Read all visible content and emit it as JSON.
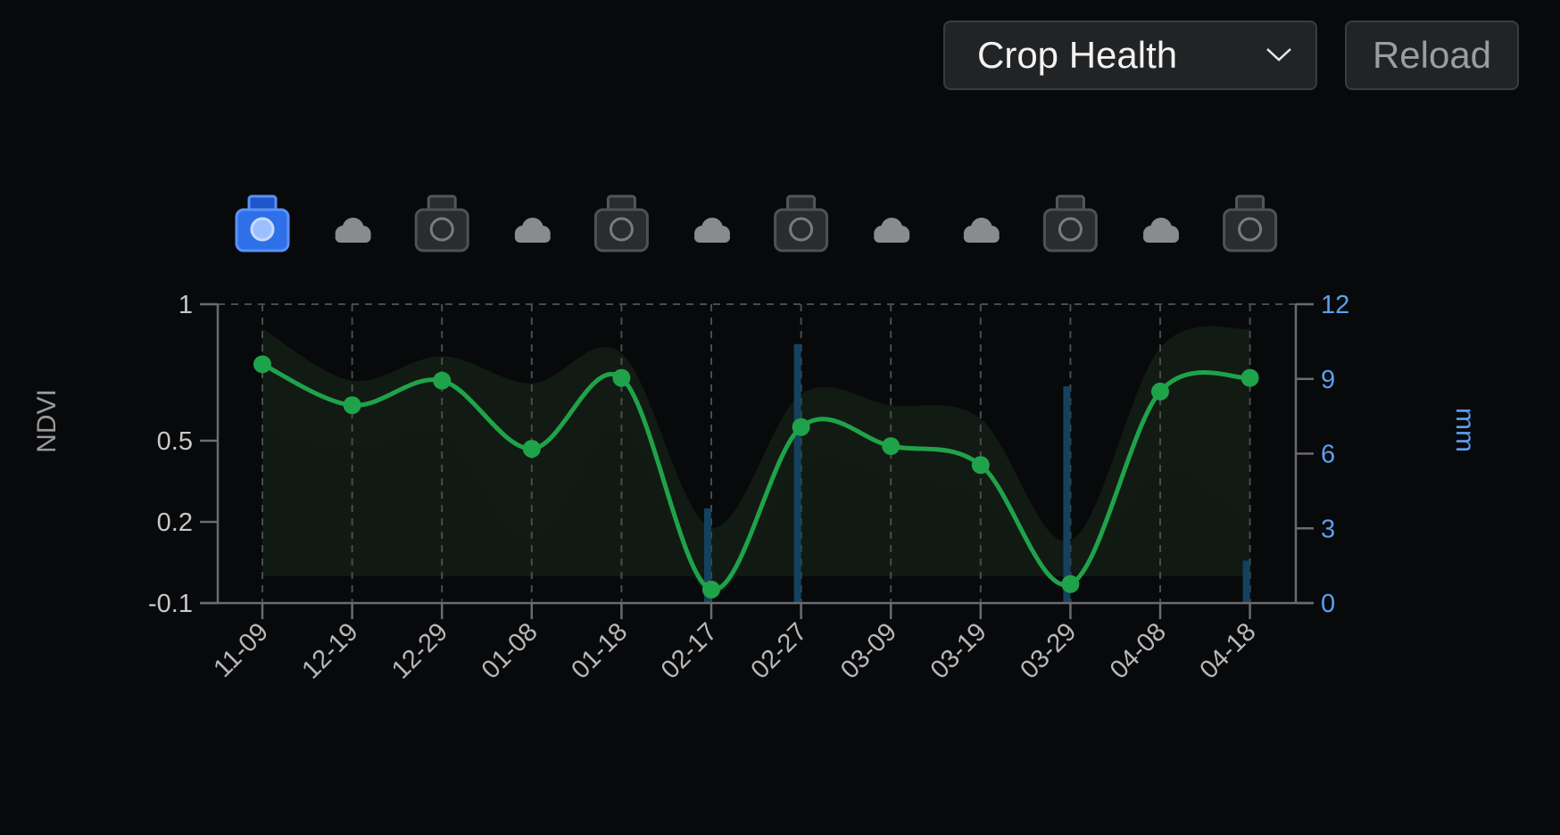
{
  "toolbar": {
    "layer_select": {
      "value": "Crop Health",
      "icon": "chevron-down-icon"
    },
    "reload_label": "Reload"
  },
  "colors": {
    "ndvi_line": "#1fa34a",
    "rain_bar": "#14415f",
    "band_outer": "#121a14",
    "band_inner": "#101a12",
    "axis": "#6a6b6e",
    "left_ticks": "#c8c8c8",
    "right_ticks": "#5aa0f0",
    "camera_active": "#2f6fe8",
    "camera_inactive": "#3a3b3f",
    "cloud": "#8a8b8e"
  },
  "chart_data": {
    "type": "line",
    "x": [
      "11-09",
      "12-19",
      "12-29",
      "01-08",
      "01-18",
      "02-17",
      "02-27",
      "03-09",
      "03-19",
      "03-29",
      "04-08",
      "04-18"
    ],
    "ylabel": "NDVI",
    "y2label": "mm",
    "y_ticks": [
      "1",
      "0.5",
      "0.2",
      "-0.1"
    ],
    "y2_ticks": [
      "12",
      "9",
      "6",
      "3",
      "0"
    ],
    "y2lim": [
      0,
      12
    ],
    "grid": "vertical dashed at each date, dashed line at top",
    "observation_icons": [
      "camera-active",
      "cloud",
      "camera",
      "cloud",
      "camera",
      "cloud",
      "camera",
      "cloud",
      "cloud",
      "camera",
      "cloud",
      "camera"
    ],
    "series": [
      {
        "kind": "line",
        "values": [
          0.78,
          0.63,
          0.72,
          0.47,
          0.73,
          -0.05,
          0.55,
          0.48,
          0.41,
          -0.03,
          0.68,
          0.73
        ]
      },
      {
        "kind": "band_outer_upper",
        "values": [
          0.91,
          0.72,
          0.81,
          0.71,
          0.82,
          0.18,
          0.67,
          0.63,
          0.58,
          0.13,
          0.84,
          0.91
        ]
      },
      {
        "kind": "band_inner_upper",
        "values": [
          0.55,
          0.47,
          0.53,
          0.14,
          0.56,
          -0.07,
          0.42,
          0.37,
          0.3,
          0.0,
          0.4,
          0.2
        ]
      },
      {
        "kind": "bar",
        "values": [
          0,
          0,
          0,
          0,
          0,
          3.8,
          10.4,
          0,
          0,
          8.7,
          0,
          1.7
        ]
      }
    ]
  }
}
